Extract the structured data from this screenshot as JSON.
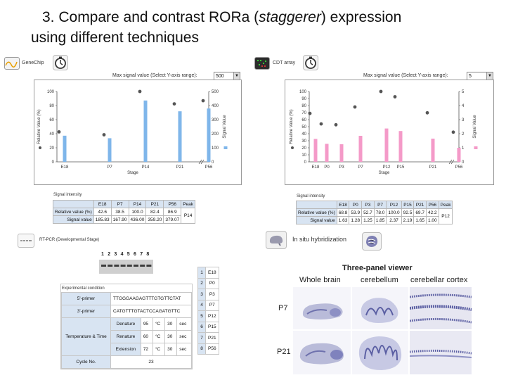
{
  "title": {
    "prefix": "3. Compare and contrast RORa (",
    "italic": "staggerer",
    "suffix": ") expression",
    "line2": "using different techniques"
  },
  "colors": {
    "genechip_bar": "#7fb6ea",
    "cdt_bar": "#f49ac8",
    "dot": "#555555",
    "table_header": "#d8e4f2"
  },
  "genechip": {
    "app_label": "GeneChip",
    "app_icon": "gene-wave-icon",
    "clock_icon": "stopwatch-icon",
    "select_label": "Max signal value (Select Y-axis range):",
    "select_value": "500",
    "signal_title": "Signal intensity",
    "stages": [
      "E18",
      "P7",
      "P14",
      "P21",
      "P56"
    ],
    "relative_label": "Relative value (%)",
    "signal_label": "Signal value",
    "peak_label": "Peak",
    "relative": [
      "42.6",
      "38.5",
      "100.0",
      "82.4",
      "86.9"
    ],
    "signal": [
      "185.83",
      "167.90",
      "436.00",
      "359.20",
      "379.07"
    ],
    "peak": "P14"
  },
  "cdt": {
    "app_label": "CDT array",
    "app_icon": "array-icon",
    "clock_icon": "stopwatch-icon",
    "select_label": "Max signal value (Select Y-axis range):",
    "select_value": "5",
    "signal_title": "Signal intensity",
    "stages": [
      "E18",
      "P0",
      "P3",
      "P7",
      "P12",
      "P15",
      "P21",
      "P56"
    ],
    "relative_label": "Relative value (%)",
    "signal_label": "Signal value",
    "peak_label": "Peak",
    "relative": [
      "68.8",
      "53.9",
      "52.7",
      "78.0",
      "100.0",
      "92.5",
      "69.7",
      "42.2"
    ],
    "signal": [
      "1.63",
      "1.28",
      "1.25",
      "1.85",
      "2.37",
      "2.19",
      "1.65",
      "1.00"
    ],
    "peak": "P12"
  },
  "chart_data": [
    {
      "type": "bar",
      "name": "GeneChip",
      "categories": [
        "E18",
        "P7",
        "P14",
        "P21",
        "P56"
      ],
      "x_positions": [
        "E18",
        "P7",
        "P14",
        "P21",
        "P56"
      ],
      "x_ticks": [
        "E18",
        "P7",
        "P14",
        "P21",
        "P56"
      ],
      "values": [
        185.83,
        167.9,
        436.0,
        359.2,
        379.07
      ],
      "relative": [
        42.6,
        38.5,
        100.0,
        82.4,
        86.9
      ],
      "xlabel": "Stage",
      "ylabel_left": "Relative Value (%)",
      "ylabel_right": "Signal Value",
      "ylim_left": [
        0,
        100
      ],
      "ylim_right": [
        0,
        500
      ],
      "left_ticks": [
        "0",
        "20",
        "40",
        "60",
        "80",
        "100"
      ],
      "right_ticks": [
        "0",
        "100",
        "200",
        "300",
        "400",
        "500"
      ],
      "grid": false
    },
    {
      "type": "bar",
      "name": "CDT array",
      "categories": [
        "E18",
        "P0",
        "P3",
        "P7",
        "P12",
        "P15",
        "P21",
        "P56"
      ],
      "x_ticks": [
        "E18",
        "P0",
        "P3",
        "P7",
        "P12",
        "P15",
        "P21",
        "P56"
      ],
      "values": [
        1.63,
        1.28,
        1.25,
        1.85,
        2.37,
        2.19,
        1.65,
        1.0
      ],
      "relative": [
        68.8,
        53.9,
        52.7,
        78.0,
        100.0,
        92.5,
        69.7,
        42.2
      ],
      "xlabel": "Stage",
      "ylabel_left": "Relative Value (%)",
      "ylabel_right": "Signal Value",
      "ylim_left": [
        0,
        100
      ],
      "ylim_right": [
        0,
        5
      ],
      "left_ticks": [
        "0",
        "10",
        "20",
        "30",
        "40",
        "50",
        "60",
        "70",
        "80",
        "90",
        "100"
      ],
      "right_ticks": [
        "0",
        "1",
        "2",
        "3",
        "4",
        "5"
      ],
      "grid": false
    }
  ],
  "rtpcr": {
    "label": "RT-PCR (Developmental Stage)",
    "icon": "rtpcr-icon",
    "lane_numbers": [
      "1",
      "2",
      "3",
      "4",
      "5",
      "6",
      "7",
      "8"
    ],
    "condition_title": "Experimental condition",
    "primer5_label": "5'-primer",
    "primer5": "TTGGGAAGAGTTTGTGTTCTAT",
    "primer3_label": "3'-primer",
    "primer3": "CATGTTTGTACTCCAGATGTTC",
    "temp_label": "Temperature & Time",
    "steps": [
      {
        "name": "Denature",
        "temp": "95",
        "unit": "°C",
        "time": "30",
        "tunit": "sec"
      },
      {
        "name": "Renature",
        "temp": "60",
        "unit": "°C",
        "time": "30",
        "tunit": "sec"
      },
      {
        "name": "Extension",
        "temp": "72",
        "unit": "°C",
        "time": "30",
        "tunit": "sec"
      }
    ],
    "cycle_label": "Cycle No.",
    "cycle": "23",
    "lane_stages": [
      {
        "n": "1",
        "s": "E18"
      },
      {
        "n": "2",
        "s": "P0"
      },
      {
        "n": "3",
        "s": "P3"
      },
      {
        "n": "4",
        "s": "P7"
      },
      {
        "n": "5",
        "s": "P12"
      },
      {
        "n": "6",
        "s": "P15"
      },
      {
        "n": "7",
        "s": "P21"
      },
      {
        "n": "8",
        "s": "P56"
      }
    ]
  },
  "ish": {
    "label": "In situ hybridization",
    "icon": "brain-icon",
    "second_icon": "cerebellum-icon",
    "viewer_title": "Three-panel viewer",
    "columns": [
      "Whole brain",
      "cerebellum",
      "cerebellar cortex"
    ],
    "rows": [
      "P7",
      "P21"
    ]
  }
}
